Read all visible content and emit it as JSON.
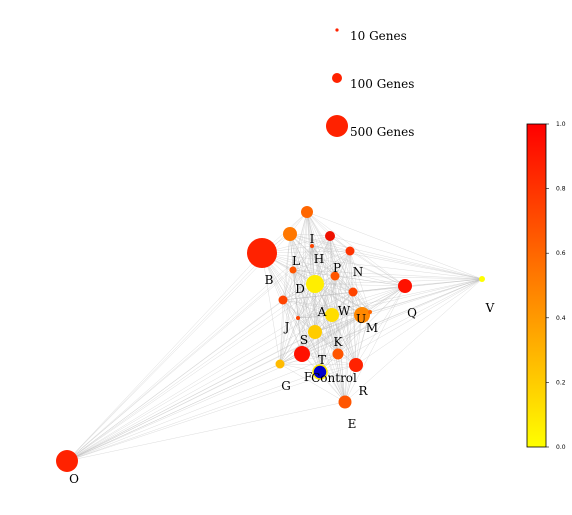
{
  "legend": {
    "items": [
      {
        "label": "10 Genes",
        "genes": 10
      },
      {
        "label": "100 Genes",
        "genes": 100
      },
      {
        "label": "500 Genes",
        "genes": 500
      }
    ],
    "color": "#ff2200"
  },
  "colorbar": {
    "range": [
      0.0,
      1.0
    ],
    "ticks": [
      "0.0",
      "0.2",
      "0.4",
      "0.6",
      "0.8",
      "1.0"
    ],
    "colors": [
      "#ffff00",
      "#ff0000"
    ]
  },
  "nodes": [
    {
      "id": "I",
      "label": "I",
      "color": "#ee1100"
    },
    {
      "id": "B",
      "label": "B",
      "color": "#ff2200"
    },
    {
      "id": "L",
      "label": "L",
      "color": "#ff5500"
    },
    {
      "id": "H",
      "label": "H",
      "color": "#ff4400"
    },
    {
      "id": "P",
      "label": "P",
      "color": "#ff5500"
    },
    {
      "id": "N",
      "label": "N",
      "color": "#ff3300"
    },
    {
      "id": "D",
      "label": "D",
      "color": "#ffee00"
    },
    {
      "id": "Q",
      "label": "Q",
      "color": "#ff1100"
    },
    {
      "id": "V",
      "label": "V",
      "color": "#ffff00"
    },
    {
      "id": "A",
      "label": "A",
      "color": "#ffdd00"
    },
    {
      "id": "W",
      "label": "W",
      "color": "#ff4400"
    },
    {
      "id": "U",
      "label": "U",
      "color": "#ff8800"
    },
    {
      "id": "M",
      "label": "M",
      "color": "#ff6600"
    },
    {
      "id": "J",
      "label": "J",
      "color": "#ff4400"
    },
    {
      "id": "S",
      "label": "S",
      "color": "#ffcc00"
    },
    {
      "id": "K",
      "label": "K",
      "color": "#ff5500"
    },
    {
      "id": "T",
      "label": "T",
      "color": "#ff1100"
    },
    {
      "id": "F",
      "label": "F",
      "color": "#ffbb00"
    },
    {
      "id": "Control",
      "label": "Control",
      "color": "#0000cc"
    },
    {
      "id": "R",
      "label": "R",
      "color": "#ff2200"
    },
    {
      "id": "G",
      "label": "G",
      "color": "#ff8800"
    },
    {
      "id": "E",
      "label": "E",
      "color": "#ff5500"
    },
    {
      "id": "O",
      "label": "O",
      "color": "#ff2200"
    },
    {
      "id": "top",
      "label": "",
      "color": "#ff6600"
    },
    {
      "id": "left-mid",
      "label": "",
      "color": "#ff4400"
    },
    {
      "id": "orange-tl",
      "label": "",
      "color": "#ff7700"
    },
    {
      "id": "red-right",
      "label": "",
      "color": "#ff3300"
    }
  ]
}
